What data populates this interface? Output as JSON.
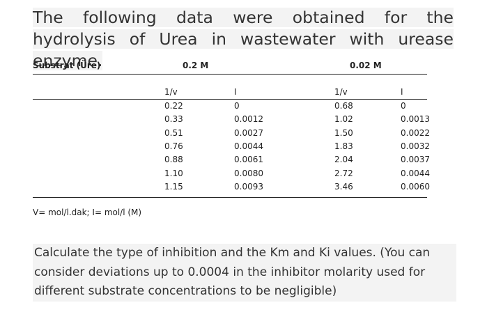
{
  "intro": "The following data were obtained for the hydrolysis of Urea in wastewater with urease enzyme.",
  "table": {
    "header": [
      "Substrat (Üre)",
      "0.2 M",
      "0.02 M"
    ],
    "subheader": [
      "1/v",
      "I",
      "1/v",
      "I"
    ],
    "rows": [
      [
        "0.22",
        "0",
        "0.68",
        "0"
      ],
      [
        "0.33",
        "0.0012",
        "1.02",
        "0.0013"
      ],
      [
        "0.51",
        "0.0027",
        "1.50",
        "0.0022"
      ],
      [
        "0.76",
        "0.0044",
        "1.83",
        "0.0032"
      ],
      [
        "0.88",
        "0.0061",
        "2.04",
        "0.0037"
      ],
      [
        "1.10",
        "0.0080",
        "2.72",
        "0.0044"
      ],
      [
        "1.15",
        "0.0093",
        "3.46",
        "0.0060"
      ]
    ]
  },
  "footnote": "V= mol/l.dak; I= mol/l (M)",
  "question": "Calculate the type of inhibition and the Km and Ki values. (You can consider deviations up to 0.0004 in the inhibitor molarity used for different substrate concentrations to be negligible)"
}
